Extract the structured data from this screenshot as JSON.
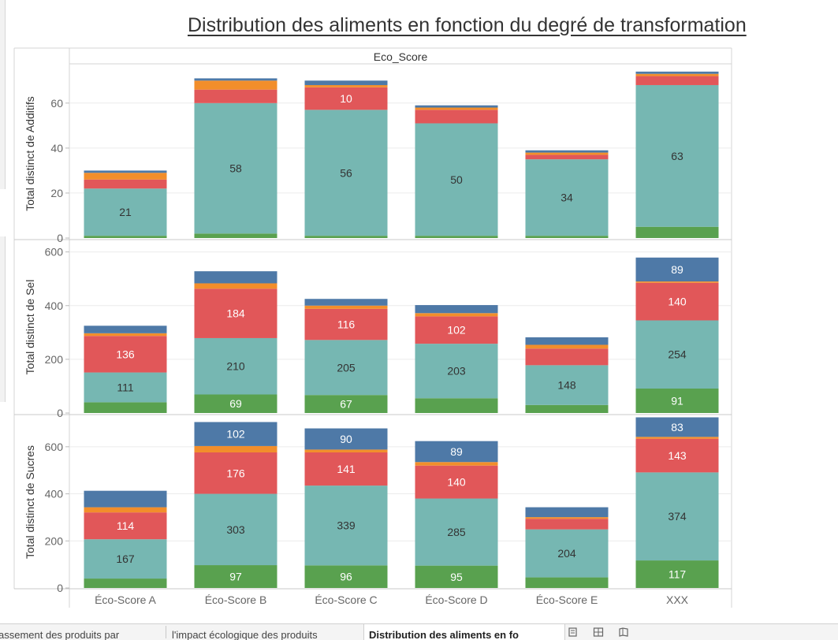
{
  "title": "Distribution des aliments en fonction du degré de transformation",
  "colors": {
    "green": "#59a14f",
    "teal": "#76b7b2",
    "red": "#e15759",
    "orange": "#f28e2b",
    "blue": "#4e79a7",
    "grid": "#ebebeb",
    "axis_text": "#666666",
    "label_dark": "#333333",
    "label_light": "#ffffff"
  },
  "chart_data": {
    "type": "bar",
    "stacked": true,
    "column_header": "Eco_Score",
    "categories": [
      "Éco-Score A",
      "Éco-Score B",
      "Éco-Score C",
      "Éco-Score D",
      "Éco-Score E",
      "XXX"
    ],
    "series_colors": [
      "green",
      "teal",
      "red",
      "orange",
      "blue"
    ],
    "panels": [
      {
        "ylabel": "Total distinct de Additifs",
        "ylim": [
          0,
          75
        ],
        "yticks": [
          0,
          20,
          40,
          60
        ],
        "values": [
          [
            1,
            21,
            4,
            3,
            1
          ],
          [
            2,
            58,
            6,
            4,
            1
          ],
          [
            1,
            56,
            10,
            1,
            2
          ],
          [
            1,
            50,
            6,
            1,
            1
          ],
          [
            1,
            34,
            2,
            1,
            1
          ],
          [
            5,
            63,
            4,
            1,
            1
          ]
        ],
        "labels": [
          [
            null,
            "21",
            null,
            null,
            null
          ],
          [
            null,
            "58",
            null,
            null,
            null
          ],
          [
            null,
            "56",
            "10",
            null,
            null
          ],
          [
            null,
            "50",
            null,
            null,
            null
          ],
          [
            null,
            "34",
            null,
            null,
            null
          ],
          [
            null,
            "63",
            null,
            null,
            null
          ]
        ]
      },
      {
        "ylabel": "Total distinct de Sel",
        "ylim": [
          0,
          640
        ],
        "yticks": [
          0,
          200,
          400,
          600
        ],
        "values": [
          [
            40,
            111,
            136,
            10,
            28
          ],
          [
            69,
            210,
            184,
            20,
            45
          ],
          [
            67,
            205,
            116,
            12,
            25
          ],
          [
            55,
            203,
            102,
            12,
            30
          ],
          [
            30,
            148,
            62,
            14,
            28
          ],
          [
            91,
            254,
            140,
            5,
            89
          ]
        ],
        "labels": [
          [
            null,
            "111",
            "136",
            null,
            null
          ],
          [
            "69",
            "210",
            "184",
            null,
            null
          ],
          [
            "67",
            "205",
            "116",
            null,
            null
          ],
          [
            null,
            "203",
            "102",
            null,
            null
          ],
          [
            null,
            "148",
            null,
            null,
            null
          ],
          [
            "91",
            "254",
            "140",
            null,
            "89"
          ]
        ]
      },
      {
        "ylabel": "Total distinct de Sucres",
        "ylim": [
          0,
          730
        ],
        "yticks": [
          0,
          200,
          400,
          600
        ],
        "values": [
          [
            40,
            167,
            114,
            22,
            70
          ],
          [
            97,
            303,
            176,
            27,
            102
          ],
          [
            96,
            339,
            141,
            12,
            90
          ],
          [
            95,
            285,
            140,
            15,
            89
          ],
          [
            45,
            204,
            45,
            7,
            42
          ],
          [
            117,
            374,
            143,
            8,
            83
          ]
        ],
        "labels": [
          [
            null,
            "167",
            "114",
            null,
            null
          ],
          [
            "97",
            "303",
            "176",
            null,
            "102"
          ],
          [
            "96",
            "339",
            "141",
            null,
            "90"
          ],
          [
            "95",
            "285",
            "140",
            null,
            "89"
          ],
          [
            null,
            "204",
            null,
            null,
            null
          ],
          [
            "117",
            "374",
            "143",
            null,
            "83"
          ]
        ]
      }
    ]
  },
  "tabs": [
    {
      "label": "assement des produits par",
      "active": false
    },
    {
      "label": "l'impact écologique des produits",
      "active": false
    },
    {
      "label": "Distribution des aliments en fo",
      "active": true
    }
  ],
  "tab_icons": [
    "new-sheet-icon",
    "new-dashboard-icon",
    "new-story-icon"
  ]
}
